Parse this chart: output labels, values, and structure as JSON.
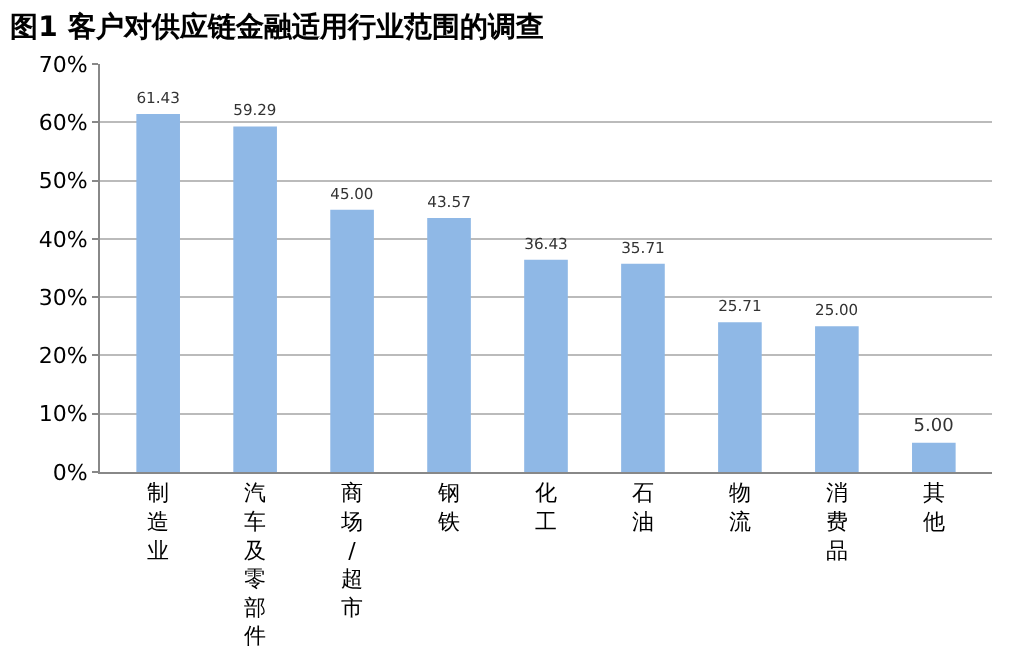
{
  "chart_data": {
    "type": "bar",
    "title": "图1 客户对供应链金融适用行业范围的调查",
    "categories": [
      "制造业",
      "汽车及零部件",
      "商场/超市",
      "钢铁",
      "化工",
      "石油",
      "物流",
      "消费品",
      "其他"
    ],
    "values": [
      61.43,
      59.29,
      45.0,
      43.57,
      36.43,
      35.71,
      25.71,
      25.0,
      5.0
    ],
    "value_labels": [
      "61.43",
      "59.29",
      "45.00",
      "43.57",
      "36.43",
      "35.71",
      "25.71",
      "25.00",
      "5.00"
    ],
    "color": "#8fb8e6",
    "ylim": [
      0,
      70
    ],
    "yticks": [
      {
        "value": 0,
        "label": "0%"
      },
      {
        "value": 10,
        "label": "10%"
      },
      {
        "value": 20,
        "label": "20%"
      },
      {
        "value": 30,
        "label": "30%"
      },
      {
        "value": 40,
        "label": "40%"
      },
      {
        "value": 50,
        "label": "50%"
      },
      {
        "value": 60,
        "label": "60%"
      },
      {
        "value": 70,
        "label": "70%"
      }
    ],
    "grid": "y"
  }
}
